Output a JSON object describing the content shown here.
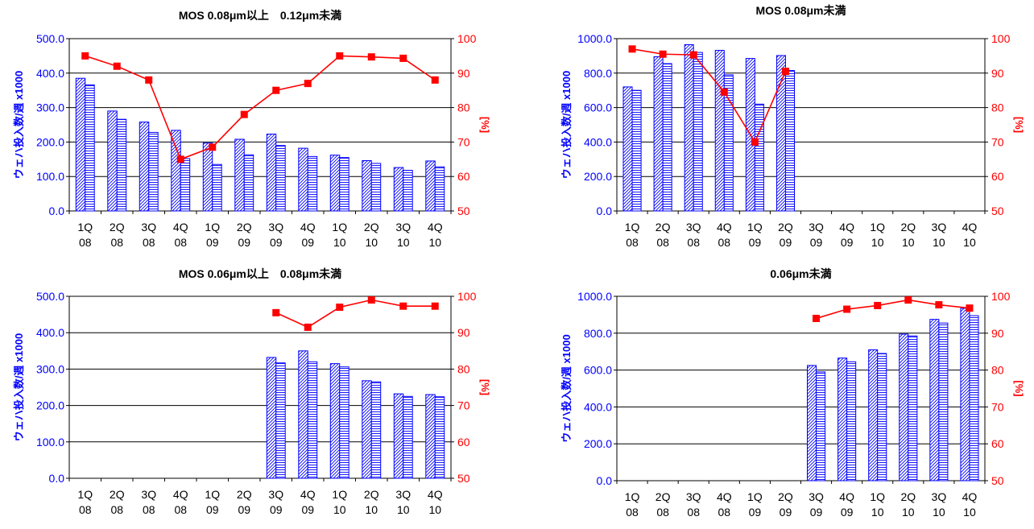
{
  "colors": {
    "bar_stroke": "#0000ff",
    "bar_fill": "#ffffff",
    "line": "#ff0000",
    "left_axis_text": "#0000ff",
    "right_axis_text": "#ff0000",
    "grid": "#000000",
    "text": "#000000"
  },
  "chart_data": [
    {
      "type": "bar",
      "title": "MOS 0.08μm以上　0.12μm未満",
      "ylabel": "ウェハ投入数/週 x1000",
      "y2label": "[%]",
      "ylim": [
        0,
        500
      ],
      "y2lim": [
        50,
        100
      ],
      "yticks": [
        "0.0",
        "100.0",
        "200.0",
        "300.0",
        "400.0",
        "500.0"
      ],
      "y2ticks": [
        "50",
        "60",
        "70",
        "80",
        "90",
        "100"
      ],
      "categories": [
        [
          "1Q",
          "08"
        ],
        [
          "2Q",
          "08"
        ],
        [
          "3Q",
          "08"
        ],
        [
          "4Q",
          "08"
        ],
        [
          "1Q",
          "09"
        ],
        [
          "2Q",
          "09"
        ],
        [
          "3Q",
          "09"
        ],
        [
          "4Q",
          "09"
        ],
        [
          "1Q",
          "10"
        ],
        [
          "2Q",
          "10"
        ],
        [
          "3Q",
          "10"
        ],
        [
          "4Q",
          "10"
        ]
      ],
      "series": [
        {
          "values": [
            385,
            290,
            258,
            234,
            197,
            208,
            223,
            182,
            162,
            146,
            126,
            145
          ]
        },
        {
          "values": [
            366,
            266,
            228,
            152,
            135,
            163,
            190,
            158,
            155,
            138,
            118,
            128
          ]
        }
      ],
      "line": {
        "values": [
          95,
          92,
          88,
          65,
          68.5,
          78,
          85,
          87,
          95,
          94.7,
          94.3,
          88
        ]
      }
    },
    {
      "type": "bar",
      "title": "MOS 0.08μm未満",
      "ylabel": "ウェハ投入数/週 x1000",
      "y2label": "[%]",
      "ylim": [
        0,
        1000
      ],
      "y2lim": [
        50,
        100
      ],
      "yticks": [
        "0.0",
        "200.0",
        "400.0",
        "600.0",
        "800.0",
        "1000.0"
      ],
      "y2ticks": [
        "50",
        "60",
        "70",
        "80",
        "90",
        "100"
      ],
      "categories": [
        [
          "1Q",
          "08"
        ],
        [
          "2Q",
          "08"
        ],
        [
          "3Q",
          "08"
        ],
        [
          "4Q",
          "08"
        ],
        [
          "1Q",
          "09"
        ],
        [
          "2Q",
          "09"
        ],
        [
          "3Q",
          "09"
        ],
        [
          "4Q",
          "09"
        ],
        [
          "1Q",
          "10"
        ],
        [
          "2Q",
          "10"
        ],
        [
          "3Q",
          "10"
        ],
        [
          "4Q",
          "10"
        ]
      ],
      "series": [
        {
          "values": [
            720,
            895,
            965,
            932,
            885,
            902,
            null,
            null,
            null,
            null,
            null,
            null
          ]
        },
        {
          "values": [
            700,
            855,
            920,
            790,
            620,
            815,
            null,
            null,
            null,
            null,
            null,
            null
          ]
        }
      ],
      "line": {
        "values": [
          97,
          95.5,
          95.3,
          84.5,
          70,
          90.5,
          null,
          null,
          null,
          null,
          null,
          null
        ]
      }
    },
    {
      "type": "bar",
      "title": "MOS 0.06μm以上　0.08μm未満",
      "ylabel": "ウェハ投入数/週 x1000",
      "y2label": "[%]",
      "ylim": [
        0,
        500
      ],
      "y2lim": [
        50,
        100
      ],
      "yticks": [
        "0.0",
        "100.0",
        "200.0",
        "300.0",
        "400.0",
        "500.0"
      ],
      "y2ticks": [
        "50",
        "60",
        "70",
        "80",
        "90",
        "100"
      ],
      "categories": [
        [
          "1Q",
          "08"
        ],
        [
          "2Q",
          "08"
        ],
        [
          "3Q",
          "08"
        ],
        [
          "4Q",
          "08"
        ],
        [
          "1Q",
          "09"
        ],
        [
          "2Q",
          "09"
        ],
        [
          "3Q",
          "09"
        ],
        [
          "4Q",
          "09"
        ],
        [
          "1Q",
          "10"
        ],
        [
          "2Q",
          "10"
        ],
        [
          "3Q",
          "10"
        ],
        [
          "4Q",
          "10"
        ]
      ],
      "series": [
        {
          "values": [
            null,
            null,
            null,
            null,
            null,
            null,
            332,
            350,
            315,
            268,
            232,
            230
          ]
        },
        {
          "values": [
            null,
            null,
            null,
            null,
            null,
            null,
            317,
            320,
            306,
            265,
            225,
            224
          ]
        }
      ],
      "line": {
        "values": [
          null,
          null,
          null,
          null,
          null,
          null,
          95.5,
          91.5,
          97,
          99,
          97.3,
          97.3
        ]
      }
    },
    {
      "type": "bar",
      "title": "0.06μm未満",
      "ylabel": "ウェハ投入数/週 x1000",
      "y2label": "[%]",
      "ylim": [
        0,
        1000
      ],
      "y2lim": [
        50,
        100
      ],
      "yticks": [
        "0.0",
        "200.0",
        "400.0",
        "600.0",
        "800.0",
        "1000.0"
      ],
      "y2ticks": [
        "50",
        "60",
        "70",
        "80",
        "90",
        "100"
      ],
      "categories": [
        [
          "1Q",
          "08"
        ],
        [
          "2Q",
          "08"
        ],
        [
          "3Q",
          "08"
        ],
        [
          "4Q",
          "08"
        ],
        [
          "1Q",
          "09"
        ],
        [
          "2Q",
          "09"
        ],
        [
          "3Q",
          "09"
        ],
        [
          "4Q",
          "09"
        ],
        [
          "1Q",
          "10"
        ],
        [
          "2Q",
          "10"
        ],
        [
          "3Q",
          "10"
        ],
        [
          "4Q",
          "10"
        ]
      ],
      "series": [
        {
          "values": [
            null,
            null,
            null,
            null,
            null,
            null,
            625,
            665,
            710,
            795,
            875,
            935
          ]
        },
        {
          "values": [
            null,
            null,
            null,
            null,
            null,
            null,
            590,
            645,
            690,
            785,
            855,
            895
          ]
        }
      ],
      "line": {
        "values": [
          null,
          null,
          null,
          null,
          null,
          null,
          94,
          96.5,
          97.5,
          99,
          97.7,
          96.8
        ]
      }
    }
  ]
}
